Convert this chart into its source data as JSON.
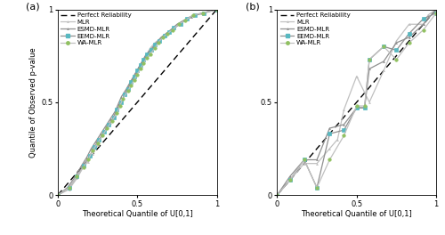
{
  "title_a": "(a)",
  "title_b": "(b)",
  "xlabel": "Theoretical Quantile of U[0,1]",
  "ylabel": "Quantile of Observed p-value",
  "xlim": [
    0,
    1
  ],
  "ylim": [
    0,
    1
  ],
  "panel_a": {
    "MLR_x": [
      0.0,
      0.07,
      0.12,
      0.16,
      0.19,
      0.22,
      0.25,
      0.28,
      0.31,
      0.33,
      0.36,
      0.38,
      0.4,
      0.42,
      0.44,
      0.46,
      0.48,
      0.5,
      0.52,
      0.54,
      0.56,
      0.58,
      0.61,
      0.64,
      0.67,
      0.7,
      0.74,
      0.78,
      0.83,
      0.9,
      1.0
    ],
    "MLR_y": [
      0.0,
      0.03,
      0.09,
      0.15,
      0.18,
      0.22,
      0.27,
      0.32,
      0.36,
      0.39,
      0.43,
      0.47,
      0.5,
      0.54,
      0.58,
      0.6,
      0.64,
      0.67,
      0.7,
      0.73,
      0.76,
      0.79,
      0.82,
      0.84,
      0.86,
      0.88,
      0.91,
      0.93,
      0.96,
      0.98,
      1.0
    ],
    "ESMD_MLR_x": [
      0.0,
      0.06,
      0.11,
      0.15,
      0.18,
      0.21,
      0.24,
      0.27,
      0.3,
      0.33,
      0.36,
      0.38,
      0.4,
      0.43,
      0.45,
      0.47,
      0.49,
      0.51,
      0.53,
      0.55,
      0.57,
      0.6,
      0.62,
      0.65,
      0.68,
      0.71,
      0.75,
      0.79,
      0.84,
      0.91,
      1.0
    ],
    "ESMD_MLR_y": [
      0.0,
      0.04,
      0.1,
      0.16,
      0.2,
      0.25,
      0.29,
      0.33,
      0.37,
      0.41,
      0.45,
      0.49,
      0.53,
      0.57,
      0.6,
      0.63,
      0.66,
      0.69,
      0.72,
      0.75,
      0.77,
      0.8,
      0.82,
      0.85,
      0.87,
      0.89,
      0.92,
      0.94,
      0.96,
      0.98,
      1.0
    ],
    "EEMD_MLR_x": [
      0.0,
      0.07,
      0.12,
      0.16,
      0.2,
      0.23,
      0.26,
      0.29,
      0.32,
      0.35,
      0.37,
      0.4,
      0.42,
      0.44,
      0.46,
      0.48,
      0.5,
      0.52,
      0.54,
      0.56,
      0.59,
      0.61,
      0.64,
      0.67,
      0.7,
      0.73,
      0.77,
      0.81,
      0.86,
      0.92,
      1.0
    ],
    "EEMD_MLR_y": [
      0.0,
      0.04,
      0.1,
      0.16,
      0.21,
      0.26,
      0.3,
      0.34,
      0.38,
      0.42,
      0.46,
      0.5,
      0.54,
      0.57,
      0.61,
      0.64,
      0.67,
      0.7,
      0.73,
      0.76,
      0.78,
      0.81,
      0.83,
      0.86,
      0.88,
      0.9,
      0.92,
      0.95,
      0.97,
      0.98,
      1.0
    ],
    "WA_MLR_x": [
      0.0,
      0.07,
      0.12,
      0.16,
      0.19,
      0.22,
      0.25,
      0.28,
      0.31,
      0.34,
      0.37,
      0.39,
      0.41,
      0.44,
      0.46,
      0.48,
      0.5,
      0.52,
      0.54,
      0.56,
      0.58,
      0.61,
      0.63,
      0.66,
      0.69,
      0.72,
      0.76,
      0.8,
      0.85,
      0.91,
      1.0
    ],
    "WA_MLR_y": [
      0.0,
      0.04,
      0.1,
      0.15,
      0.19,
      0.24,
      0.28,
      0.32,
      0.36,
      0.4,
      0.44,
      0.48,
      0.52,
      0.56,
      0.59,
      0.62,
      0.65,
      0.68,
      0.71,
      0.74,
      0.76,
      0.79,
      0.82,
      0.85,
      0.87,
      0.89,
      0.92,
      0.94,
      0.97,
      0.98,
      1.0
    ]
  },
  "panel_b": {
    "MLR_x": [
      0.0,
      0.08,
      0.17,
      0.25,
      0.33,
      0.38,
      0.42,
      0.5,
      0.58,
      0.67,
      0.75,
      0.83,
      0.92,
      0.95,
      1.0
    ],
    "MLR_y": [
      0.0,
      0.08,
      0.17,
      0.17,
      0.25,
      0.3,
      0.46,
      0.64,
      0.5,
      0.67,
      0.83,
      0.92,
      0.92,
      0.97,
      1.0
    ],
    "ESMD_MLR_x": [
      0.0,
      0.08,
      0.17,
      0.25,
      0.33,
      0.42,
      0.5,
      0.55,
      0.58,
      0.67,
      0.75,
      0.83,
      0.92,
      1.0
    ],
    "ESMD_MLR_y": [
      0.0,
      0.1,
      0.19,
      0.19,
      0.36,
      0.38,
      0.47,
      0.47,
      0.68,
      0.72,
      0.82,
      0.85,
      0.92,
      1.0
    ],
    "EEMD_MLR_x": [
      0.0,
      0.08,
      0.17,
      0.25,
      0.33,
      0.42,
      0.5,
      0.55,
      0.58,
      0.67,
      0.75,
      0.83,
      0.92,
      1.0
    ],
    "EEMD_MLR_y": [
      0.0,
      0.08,
      0.19,
      0.04,
      0.33,
      0.35,
      0.47,
      0.47,
      0.73,
      0.8,
      0.78,
      0.87,
      0.95,
      0.98
    ],
    "WA_MLR_x": [
      0.0,
      0.08,
      0.17,
      0.25,
      0.33,
      0.42,
      0.5,
      0.55,
      0.58,
      0.67,
      0.75,
      0.83,
      0.92,
      1.0
    ],
    "WA_MLR_y": [
      0.0,
      0.08,
      0.19,
      0.04,
      0.19,
      0.32,
      0.48,
      0.48,
      0.73,
      0.8,
      0.73,
      0.82,
      0.89,
      0.98
    ]
  },
  "MLR_color": "#c0c0c0",
  "ESMD_color": "#909090",
  "EEMD_color": "#58b8c0",
  "WA_color": "#90c060",
  "bg_color": "#f5f5f5"
}
